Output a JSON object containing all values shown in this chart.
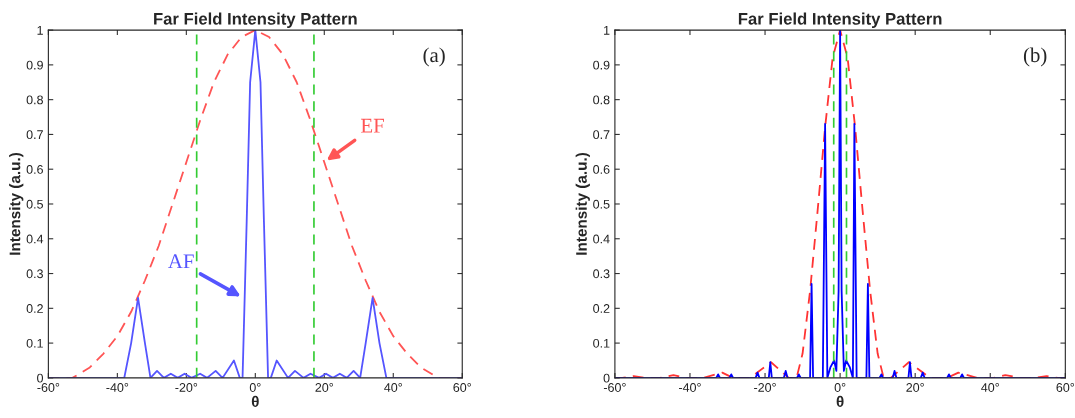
{
  "chart_data": [
    {
      "type": "line",
      "title": "Far Field Intensity Pattern",
      "xlabel": "θ",
      "ylabel": "Intensity (a.u.)",
      "xlim": [
        -60,
        60
      ],
      "xticks": [
        {
          "value": -60,
          "label": "-60°"
        },
        {
          "value": -40,
          "label": "-40°"
        },
        {
          "value": -20,
          "label": "-20°"
        },
        {
          "value": 0,
          "label": "0°"
        },
        {
          "value": 20,
          "label": "20°"
        },
        {
          "value": 40,
          "label": "40°"
        },
        {
          "value": 60,
          "label": "60°"
        }
      ],
      "ylim": [
        0,
        1
      ],
      "yticks": [
        0,
        0.1,
        0.2,
        0.3,
        0.4,
        0.5,
        0.6,
        0.7,
        0.8,
        0.9,
        1
      ],
      "grid": false,
      "legend": false,
      "series": [
        {
          "color": "#ff5555",
          "line_style": "dashed",
          "x": [
            -60,
            -53,
            -48,
            -44,
            -40,
            -36,
            -32,
            -28,
            -24,
            -20,
            -16,
            -12,
            -8,
            -4,
            0,
            4,
            8,
            12,
            16,
            20,
            24,
            28,
            32,
            36,
            40,
            44,
            48,
            53,
            60
          ],
          "values": [
            0,
            0,
            0.03,
            0.07,
            0.12,
            0.19,
            0.28,
            0.38,
            0.5,
            0.62,
            0.74,
            0.85,
            0.93,
            0.98,
            1,
            0.98,
            0.93,
            0.85,
            0.74,
            0.62,
            0.5,
            0.38,
            0.28,
            0.19,
            0.12,
            0.07,
            0.03,
            0,
            0
          ]
        },
        {
          "color": "#5555ff",
          "line_style": "solid",
          "x": [
            -60,
            -38,
            -36,
            -34,
            -32,
            -30.4,
            -28.5,
            -26.5,
            -24.5,
            -22.5,
            -20.5,
            -18.5,
            -16,
            -14,
            -11.5,
            -9.5,
            -6.2,
            -4.5,
            -3.7,
            -2.5,
            -1.5,
            0,
            1.5,
            2.5,
            3.7,
            4.5,
            6.2,
            9.5,
            11.5,
            14,
            16,
            18.5,
            20.5,
            22.5,
            24.5,
            26.5,
            28.5,
            30.4,
            32,
            34,
            36,
            38,
            60
          ],
          "values": [
            0,
            0,
            0.1,
            0.23,
            0.1,
            0,
            0.02,
            0,
            0.012,
            0,
            0.012,
            0,
            0.012,
            0,
            0.02,
            0,
            0.05,
            0,
            0,
            0.45,
            0.85,
            1,
            0.85,
            0.45,
            0,
            0,
            0.05,
            0,
            0.02,
            0,
            0.012,
            0,
            0.012,
            0,
            0.012,
            0,
            0.02,
            0,
            0.1,
            0.23,
            0.1,
            0,
            0
          ]
        }
      ],
      "ref_lines": [
        {
          "axis": "x",
          "value": -17,
          "color": "#33cc33",
          "line_style": "dashed"
        },
        {
          "axis": "x",
          "value": 17,
          "color": "#33cc33",
          "line_style": "dashed"
        }
      ],
      "annotations": [
        "(a)",
        {
          "text": "EF",
          "x": 20,
          "y": 0.62
        },
        {
          "text": "AF",
          "x": -3.5,
          "y": 0.23
        }
      ]
    },
    {
      "type": "line",
      "title": "Far Field Intensity Pattern",
      "xlabel": "θ",
      "ylabel": "Intensity (a.u.)",
      "xlim": [
        -60,
        60
      ],
      "xticks": [
        {
          "value": -60,
          "label": "-60°"
        },
        {
          "value": -40,
          "label": "-40°"
        },
        {
          "value": -20,
          "label": "-20°"
        },
        {
          "value": 0,
          "label": "0°"
        },
        {
          "value": 20,
          "label": "20°"
        },
        {
          "value": 40,
          "label": "40°"
        },
        {
          "value": 60,
          "label": "60°"
        }
      ],
      "ylim": [
        0,
        1
      ],
      "yticks": [
        0,
        0.1,
        0.2,
        0.3,
        0.4,
        0.5,
        0.6,
        0.7,
        0.8,
        0.9,
        1
      ],
      "grid": false,
      "legend": false,
      "series": [
        {
          "color": "#ff3333",
          "line_style": "dashed",
          "x": [
            -60,
            -58,
            -55,
            -52,
            -48,
            -44.4,
            -41,
            -36.5,
            -31.4,
            -28.5,
            -24,
            -18.4,
            -13.7,
            -11.6,
            -10,
            -8,
            -6,
            -4,
            -2,
            0,
            2,
            4,
            6,
            8,
            10,
            11.6,
            13.5,
            18.3,
            24,
            28.5,
            31.5,
            36.5,
            41,
            44,
            48,
            52,
            55,
            58,
            60
          ],
          "values": [
            0,
            0,
            0.005,
            0,
            0,
            0.008,
            0,
            0,
            0.015,
            0,
            0,
            0.045,
            0,
            0,
            0.07,
            0.25,
            0.48,
            0.72,
            0.92,
            1,
            0.92,
            0.72,
            0.48,
            0.25,
            0.07,
            0,
            0,
            0.045,
            0,
            0,
            0.015,
            0,
            0,
            0.008,
            0,
            0,
            0.005,
            0,
            0
          ]
        },
        {
          "color": "#0000ff",
          "line_style": "solid",
          "x": [
            -60,
            -33,
            -32.5,
            -32,
            -29.5,
            -29,
            -28.5,
            -22.5,
            -22,
            -21.5,
            -19,
            -18.6,
            -18.2,
            -15,
            -14.5,
            -14,
            -11.5,
            -11,
            -10.5,
            -8,
            -7.6,
            -7.2,
            -4.6,
            -4,
            -3.4,
            -2.6,
            -1.6,
            -1,
            -0.4,
            0,
            0.4,
            1,
            1.6,
            2.6,
            3.4,
            3.8,
            4.4,
            7,
            7.4,
            7.8,
            10.5,
            11,
            11.5,
            14,
            14.5,
            15,
            18.2,
            18.6,
            19,
            21.5,
            22,
            22.5,
            28.5,
            29,
            29.5,
            32,
            32.5,
            33,
            60
          ],
          "values": [
            0,
            0,
            0.01,
            0,
            0,
            0.01,
            0,
            0,
            0.015,
            0,
            0,
            0.045,
            0,
            0,
            0.02,
            0,
            0,
            0.01,
            0,
            0,
            0.27,
            0,
            0,
            0.73,
            0,
            0.03,
            0.05,
            0.02,
            0.25,
            1,
            0.25,
            0.02,
            0.05,
            0.03,
            0,
            0.73,
            0,
            0,
            0.27,
            0,
            0,
            0.01,
            0,
            0,
            0.02,
            0,
            0,
            0.045,
            0,
            0,
            0.015,
            0,
            0,
            0.01,
            0,
            0,
            0.01,
            0,
            0
          ]
        }
      ],
      "ref_lines": [
        {
          "axis": "x",
          "value": -1.7,
          "color": "#33cc33",
          "line_style": "dashed"
        },
        {
          "axis": "x",
          "value": 1.7,
          "color": "#33cc33",
          "line_style": "dashed"
        }
      ],
      "annotations": [
        "(b)"
      ]
    }
  ]
}
